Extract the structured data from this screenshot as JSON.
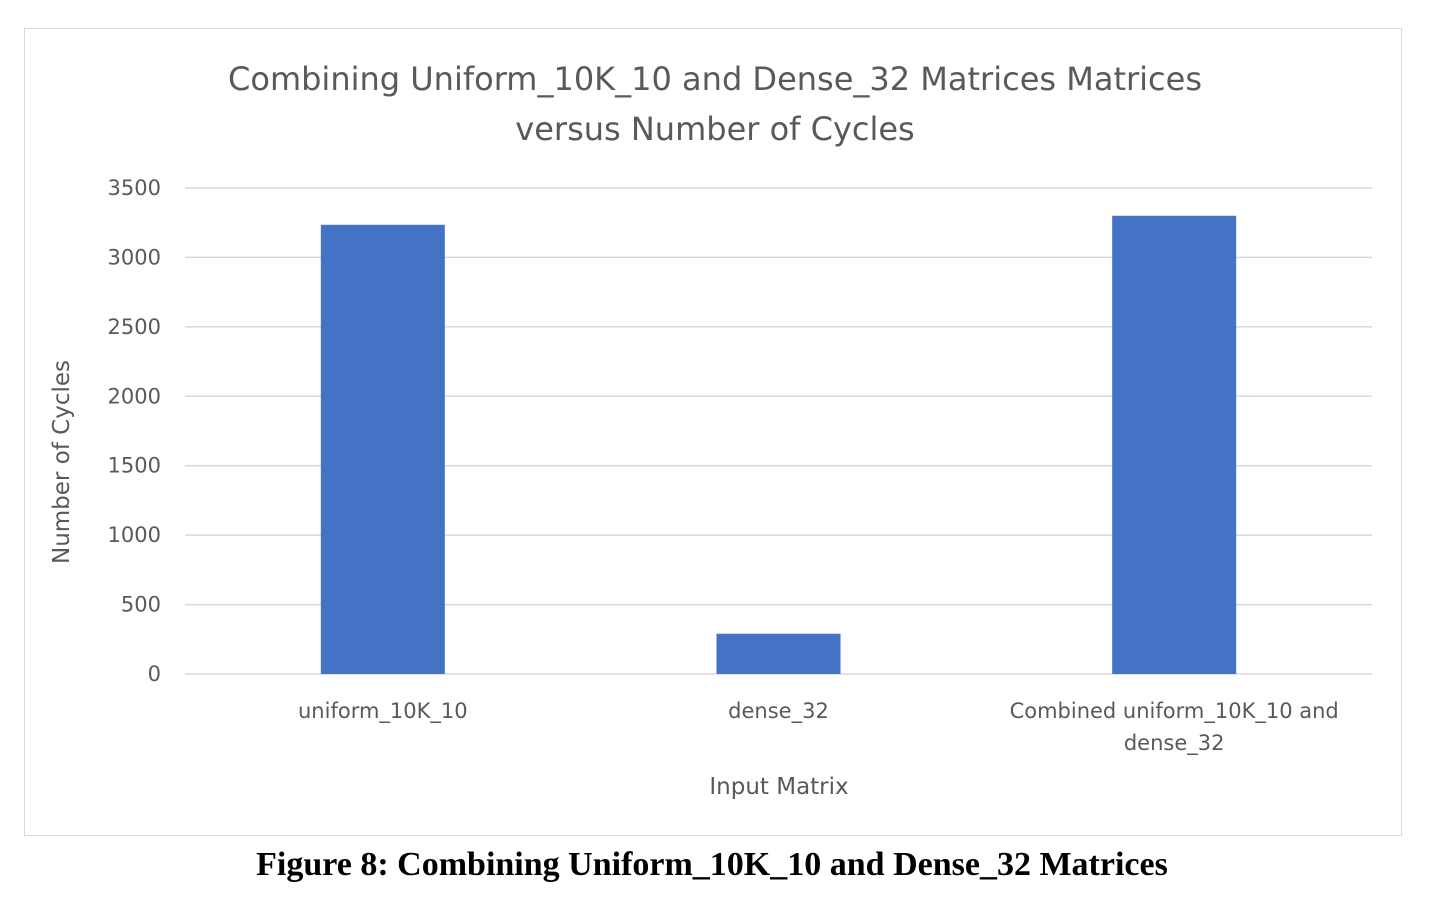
{
  "chart_data": {
    "type": "bar",
    "title": "Combining Uniform_10K_10  and Dense_32 Matrices Matrices versus Number of Cycles",
    "title_lines": [
      "Combining Uniform_10K_10  and Dense_32 Matrices Matrices",
      "versus Number of Cycles"
    ],
    "categories": [
      "uniform_10K_10",
      "dense_32",
      "Combined uniform_10K_10 and dense_32"
    ],
    "category_lines": [
      [
        "uniform_10K_10"
      ],
      [
        "dense_32"
      ],
      [
        "Combined uniform_10K_10 and",
        "dense_32"
      ]
    ],
    "values": [
      3235,
      290,
      3300
    ],
    "xlabel": "Input Matrix",
    "ylabel": "Number of Cycles",
    "ylim": [
      0,
      3500
    ],
    "yticks": [
      "0",
      "500",
      "1000",
      "1500",
      "2000",
      "2500",
      "3000",
      "3500"
    ],
    "grid": true,
    "legend": "none",
    "bar_color": "#4472c4",
    "grid_color": "#d9d9d9"
  },
  "caption": "Figure 8: Combining Uniform_10K_10 and Dense_32 Matrices"
}
